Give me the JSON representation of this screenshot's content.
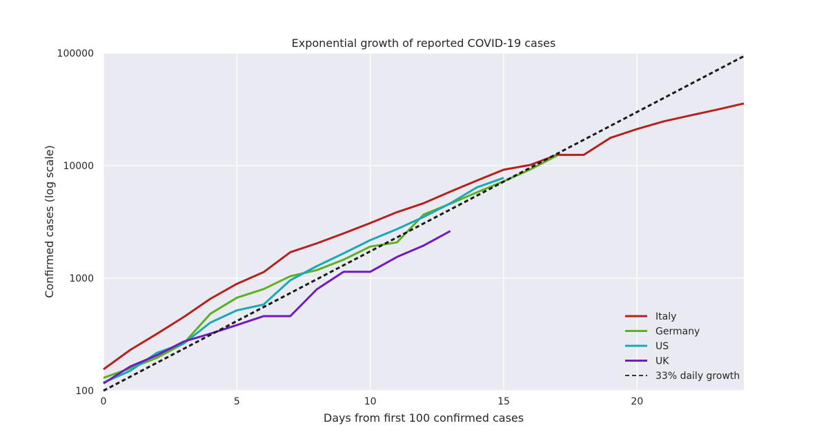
{
  "chart_data": {
    "type": "line",
    "title": "Exponential growth of reported COVID-19 cases",
    "xlabel": "Days from first 100 confirmed cases",
    "ylabel": "Confirmed cases (log scale)",
    "xlim": [
      0,
      24
    ],
    "ylim": [
      100,
      100000
    ],
    "yscale": "log",
    "grid": true,
    "legend_position": "bottom-right",
    "xticks": [
      0,
      5,
      10,
      15,
      20
    ],
    "xtick_labels": [
      "0",
      "5",
      "10",
      "15",
      "20"
    ],
    "yticks": [
      100,
      1000,
      10000,
      100000
    ],
    "ytick_labels": [
      "100",
      "1000",
      "10000",
      "100000"
    ],
    "series": [
      {
        "name": "Italy",
        "color": "#b5211e",
        "dashed": false,
        "x": [
          0,
          1,
          2,
          3,
          4,
          5,
          6,
          7,
          8,
          9,
          10,
          11,
          12,
          13,
          14,
          15,
          16,
          17,
          18,
          19,
          20,
          21,
          22,
          23,
          24
        ],
        "y": [
          155,
          230,
          320,
          450,
          655,
          890,
          1130,
          1700,
          2040,
          2500,
          3090,
          3860,
          4640,
          5880,
          7380,
          9200,
          10150,
          12460,
          12460,
          17660,
          21160,
          24750,
          27980,
          31500,
          35700
        ]
      },
      {
        "name": "Germany",
        "color": "#5db120",
        "dashed": false,
        "x": [
          0,
          1,
          2,
          3,
          4,
          5,
          6,
          7,
          8,
          9,
          10,
          11,
          12,
          13,
          14,
          15,
          16,
          17
        ],
        "y": [
          130,
          158,
          196,
          262,
          482,
          670,
          800,
          1040,
          1180,
          1460,
          1910,
          2080,
          3680,
          4590,
          5800,
          7270,
          9260,
          12300
        ]
      },
      {
        "name": "US",
        "color": "#17a9b5",
        "dashed": false,
        "x": [
          0,
          1,
          2,
          3,
          4,
          5,
          6,
          7,
          8,
          9,
          10,
          11,
          12,
          13,
          14,
          15
        ],
        "y": [
          118,
          150,
          217,
          262,
          402,
          518,
          583,
          959,
          1281,
          1663,
          2179,
          2727,
          3499,
          4632,
          6421,
          7786
        ]
      },
      {
        "name": "UK",
        "color": "#6f1bbd",
        "dashed": false,
        "x": [
          0,
          1,
          2,
          3,
          4,
          5,
          6,
          7,
          8,
          9,
          10,
          11,
          12,
          13
        ],
        "y": [
          116,
          164,
          206,
          273,
          321,
          383,
          460,
          460,
          798,
          1140,
          1140,
          1543,
          1950,
          2626
        ]
      },
      {
        "name": "33% daily growth",
        "color": "#1a1a1a",
        "dashed": true,
        "x": [
          0,
          24
        ],
        "y": [
          100,
          94000
        ]
      }
    ]
  }
}
